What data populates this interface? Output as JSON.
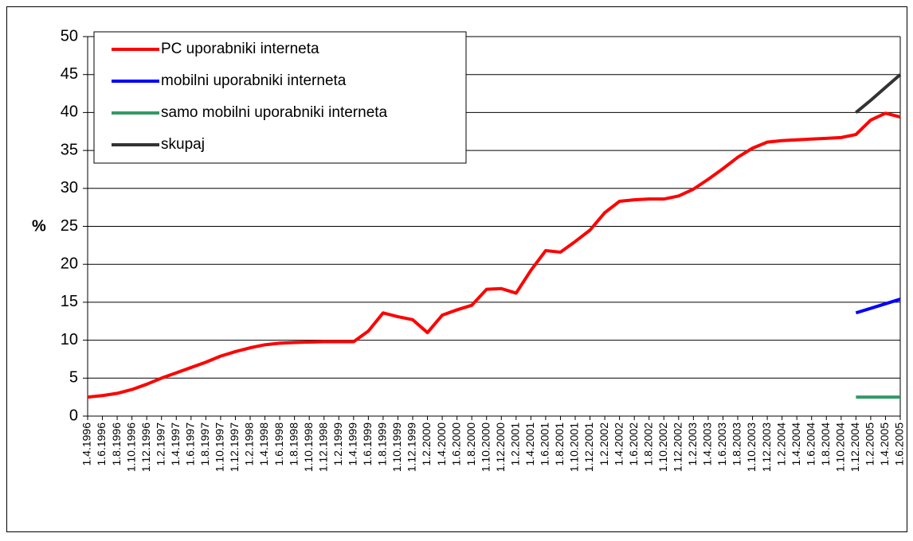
{
  "chart_data": {
    "type": "line",
    "y_label": "%",
    "categories": [
      "1.4.1996",
      "1.6.1996",
      "1.8.1996",
      "1.10.1996",
      "1.12.1996",
      "1.2.1997",
      "1.4.1997",
      "1.6.1997",
      "1.8.1997",
      "1.10.1997",
      "1.12.1997",
      "1.2.1998",
      "1.4.1998",
      "1.6.1998",
      "1.8.1998",
      "1.10.1998",
      "1.12.1998",
      "1.2.1999",
      "1.4.1999",
      "1.6.1999",
      "1.8.1999",
      "1.10.1999",
      "1.12.1999",
      "1.2.2000",
      "1.4.2000",
      "1.6.2000",
      "1.8.2000",
      "1.10.2000",
      "1.12.2000",
      "1.2.2001",
      "1.4.2001",
      "1.6.2001",
      "1.8.2001",
      "1.10.2001",
      "1.12.2001",
      "1.2.2002",
      "1.4.2002",
      "1.6.2002",
      "1.8.2002",
      "1.10.2002",
      "1.12.2002",
      "1.2.2003",
      "1.4.2003",
      "1.6.2003",
      "1.8.2003",
      "1.10.2003",
      "1.12.2003",
      "1.2.2004",
      "1.4.2004",
      "1.6.2004",
      "1.8.2004",
      "1.10.2004",
      "1.12.2004",
      "1.2.2005",
      "1.4.2005",
      "1.6.2005"
    ],
    "series": [
      {
        "name": "PC uporabniki interneta",
        "color": "#ff0000",
        "values": [
          2.5,
          2.7,
          3.0,
          3.5,
          4.2,
          5.0,
          5.7,
          6.4,
          7.1,
          7.9,
          8.5,
          9.0,
          9.4,
          9.6,
          9.7,
          9.75,
          9.8,
          9.8,
          9.8,
          11.2,
          13.6,
          13.1,
          12.7,
          11.0,
          13.3,
          14.0,
          14.6,
          16.7,
          16.8,
          16.2,
          19.2,
          21.8,
          21.6,
          23.0,
          24.5,
          26.8,
          28.3,
          28.5,
          28.6,
          28.6,
          29.0,
          29.9,
          31.2,
          32.6,
          34.1,
          35.3,
          36.1,
          36.3,
          36.4,
          36.5,
          36.6,
          36.7,
          37.1,
          39.0,
          39.9,
          39.4
        ]
      },
      {
        "name": "mobilni uporabniki interneta",
        "color": "#0000ff",
        "values": [
          null,
          null,
          null,
          null,
          null,
          null,
          null,
          null,
          null,
          null,
          null,
          null,
          null,
          null,
          null,
          null,
          null,
          null,
          null,
          null,
          null,
          null,
          null,
          null,
          null,
          null,
          null,
          null,
          null,
          null,
          null,
          null,
          null,
          null,
          null,
          null,
          null,
          null,
          null,
          null,
          null,
          null,
          null,
          null,
          null,
          null,
          null,
          null,
          null,
          null,
          null,
          null,
          13.6,
          14.2,
          14.8,
          15.4
        ]
      },
      {
        "name": "samo mobilni uporabniki interneta",
        "color": "#339966",
        "values": [
          null,
          null,
          null,
          null,
          null,
          null,
          null,
          null,
          null,
          null,
          null,
          null,
          null,
          null,
          null,
          null,
          null,
          null,
          null,
          null,
          null,
          null,
          null,
          null,
          null,
          null,
          null,
          null,
          null,
          null,
          null,
          null,
          null,
          null,
          null,
          null,
          null,
          null,
          null,
          null,
          null,
          null,
          null,
          null,
          null,
          null,
          null,
          null,
          null,
          null,
          null,
          null,
          2.5,
          2.5,
          2.5,
          2.5
        ]
      },
      {
        "name": "skupaj",
        "color": "#333333",
        "values": [
          null,
          null,
          null,
          null,
          null,
          null,
          null,
          null,
          null,
          null,
          null,
          null,
          null,
          null,
          null,
          null,
          null,
          null,
          null,
          null,
          null,
          null,
          null,
          null,
          null,
          null,
          null,
          null,
          null,
          null,
          null,
          null,
          null,
          null,
          null,
          null,
          null,
          null,
          null,
          null,
          null,
          null,
          null,
          null,
          null,
          null,
          null,
          null,
          null,
          null,
          null,
          null,
          40,
          41.6,
          43.3,
          45
        ]
      }
    ],
    "ylim": [
      0,
      50
    ],
    "yticks": [
      0,
      5,
      10,
      15,
      20,
      25,
      30,
      35,
      40,
      45,
      50
    ],
    "grid": true,
    "legend": "top-left"
  }
}
